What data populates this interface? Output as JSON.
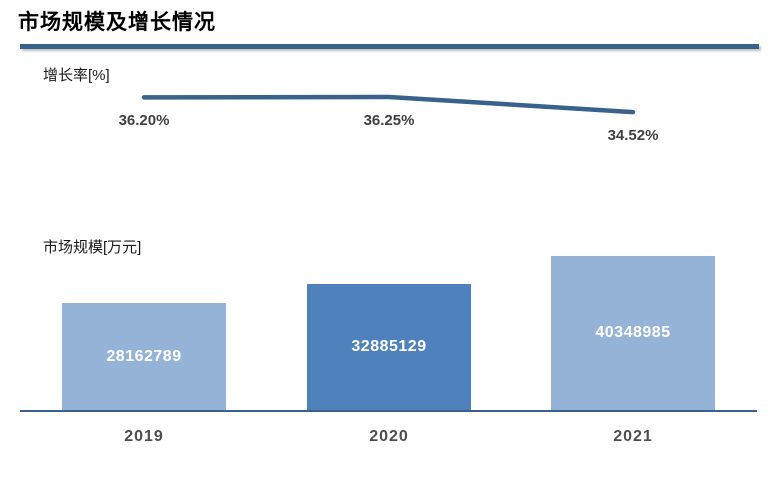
{
  "title": "市场规模及增长情况",
  "colors": {
    "accent_dark": "#38618C",
    "bar_light": "#95B3D7",
    "bar_dark": "#4F81BD",
    "label_gray": "#404040",
    "bar_value_text": "#FFFFFF"
  },
  "chart_data": [
    {
      "type": "line",
      "name": "增长率",
      "axis_label": "增长率[%]",
      "categories": [
        "2019",
        "2020",
        "2021"
      ],
      "values": [
        36.2,
        36.25,
        34.52
      ],
      "labels": [
        "36.20%",
        "36.25%",
        "34.52%"
      ],
      "unit": "%",
      "grid": false,
      "legend_position": "none",
      "data_labels": "below points"
    },
    {
      "type": "bar",
      "name": "市场规模",
      "axis_label": "市场规模[万元]",
      "categories": [
        "2019",
        "2020",
        "2021"
      ],
      "values": [
        28162789,
        32885129,
        40348985
      ],
      "labels": [
        "28162789",
        "32885129",
        "40348985"
      ],
      "unit": "万元",
      "bar_colors": [
        "#95B3D7",
        "#4F81BD",
        "#95B3D7"
      ],
      "grid": false,
      "legend_position": "none",
      "baseline": 0,
      "data_labels": "centered in bars"
    }
  ]
}
